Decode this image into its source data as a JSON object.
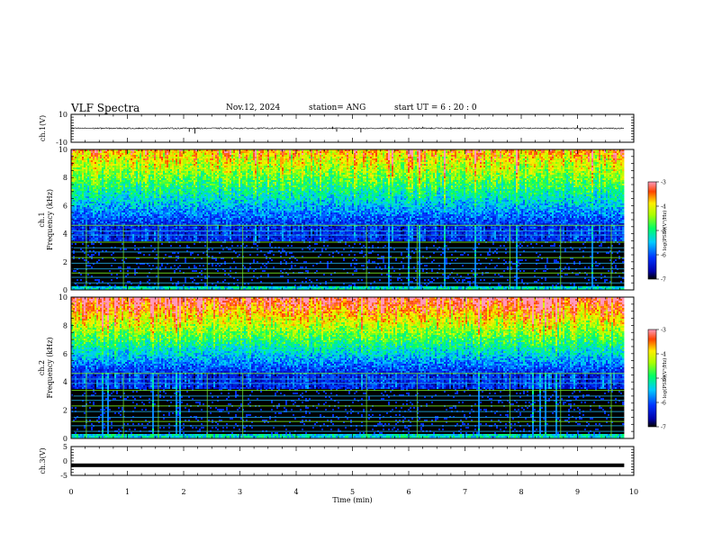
{
  "header": {
    "title": "VLF Spectra",
    "date": "Nov.12, 2024",
    "station": "station= ANG",
    "start": "start  UT =   6  : 20 : 0"
  },
  "chart_data": [
    {
      "id": "ch1-wave",
      "type": "line",
      "ylabel": "ch.1(V)",
      "ylim": [
        -10,
        10
      ],
      "yticks": [
        "10",
        "-10"
      ],
      "xlim": [
        0,
        10
      ],
      "baseline": 0,
      "spikes": [
        {
          "x": 2.1,
          "y": -2.5
        },
        {
          "x": 2.2,
          "y": -3.8
        },
        {
          "x": 4.65,
          "y": 1.2
        },
        {
          "x": 4.72,
          "y": -2.4
        },
        {
          "x": 5.15,
          "y": -3.0
        },
        {
          "x": 6.25,
          "y": 1.1
        },
        {
          "x": 6.75,
          "y": 1.0
        },
        {
          "x": 9.0,
          "y": 2.2
        },
        {
          "x": 9.05,
          "y": -1.8
        }
      ]
    },
    {
      "id": "ch1-spectrogram",
      "type": "heatmap",
      "ylabel": "ch.1",
      "ylabel2": "Frequency (kHz)",
      "ylim": [
        0,
        10
      ],
      "xlim": [
        0,
        9.83
      ],
      "yticks": [
        "0",
        "2",
        "4",
        "6",
        "8",
        "10"
      ],
      "colorbar": {
        "label": "log(PSD)(V²/Hz)",
        "range": [
          -7,
          -3
        ],
        "ticks": [
          "-3",
          "-4",
          "-5",
          "-6",
          "-7"
        ]
      }
    },
    {
      "id": "ch2-spectrogram",
      "type": "heatmap",
      "ylabel": "ch.2",
      "ylabel2": "Frequency (kHz)",
      "ylim": [
        0,
        10
      ],
      "xlim": [
        0,
        9.83
      ],
      "yticks": [
        "0",
        "2",
        "4",
        "6",
        "8",
        "10"
      ],
      "colorbar": {
        "label": "log(PSD)(V²/Hz)",
        "range": [
          -7,
          -3
        ],
        "ticks": [
          "-3",
          "-4",
          "-5",
          "-6",
          "-7"
        ]
      }
    },
    {
      "id": "ch3-wave",
      "type": "line",
      "ylabel": "ch.3(V)",
      "ylim": [
        -5,
        5
      ],
      "yticks": [
        "5",
        "0",
        "-5"
      ],
      "xlim": [
        0,
        10
      ],
      "baseline": -1.5
    }
  ],
  "xaxis": {
    "label": "Time  (min)",
    "ticks": [
      "0",
      "1",
      "2",
      "3",
      "4",
      "5",
      "6",
      "7",
      "8",
      "9",
      "10"
    ]
  }
}
